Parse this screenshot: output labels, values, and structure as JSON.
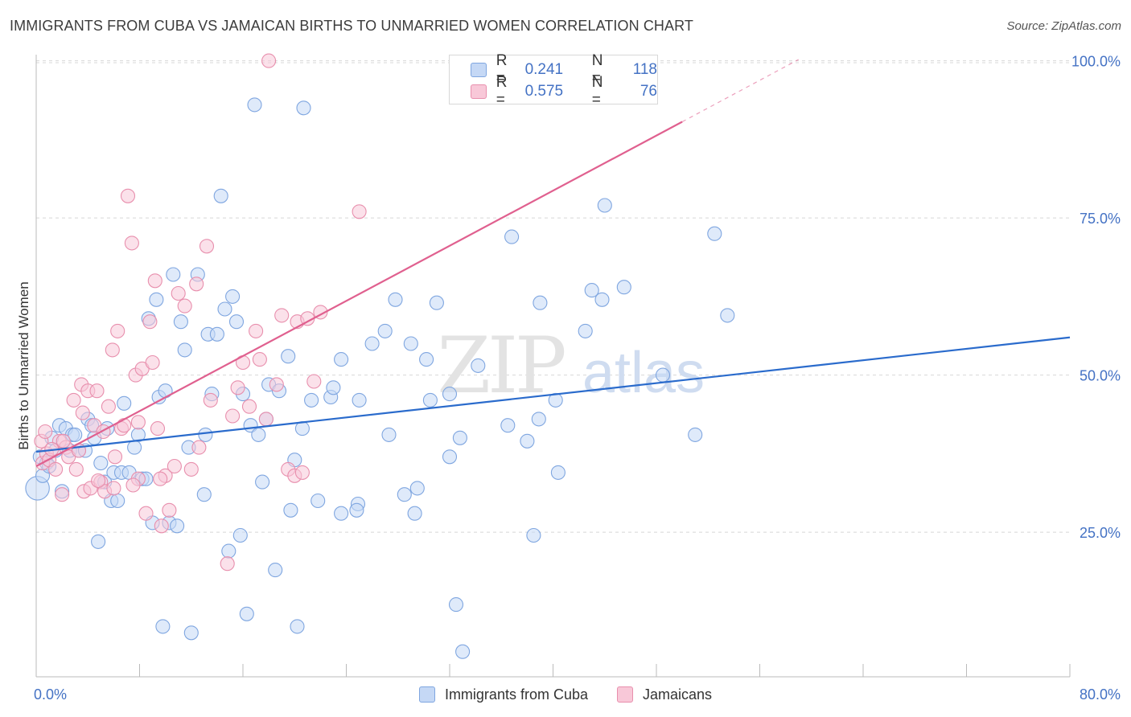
{
  "title": "IMMIGRANTS FROM CUBA VS JAMAICAN BIRTHS TO UNMARRIED WOMEN CORRELATION CHART",
  "source": "Source: ZipAtlas.com",
  "watermark": {
    "zip": "ZIP",
    "atlas": "atlas"
  },
  "legend": {
    "series1": {
      "r_label": "R =",
      "r_value": "0.241",
      "n_label": "N =",
      "n_value": "118"
    },
    "series2": {
      "r_label": "R =",
      "r_value": "0.575",
      "n_label": "N =",
      "n_value": "76"
    }
  },
  "colors": {
    "cuba_fill": "#c5d8f5",
    "cuba_stroke": "#7fa6e0",
    "cuba_line": "#2a6bcc",
    "jam_fill": "#f8c8d8",
    "jam_stroke": "#e88fad",
    "jam_line": "#e0608f",
    "grid": "#d8d8d8",
    "tick_label": "#4472c4"
  },
  "chart_data": {
    "type": "scatter",
    "title": "IMMIGRANTS FROM CUBA VS JAMAICAN BIRTHS TO UNMARRIED WOMEN CORRELATION CHART",
    "xlabel": "",
    "ylabel": "Births to Unmarried Women",
    "xlim": [
      0,
      80
    ],
    "ylim": [
      2,
      102
    ],
    "x_tick_labels": [
      "0.0%",
      "80.0%"
    ],
    "y_ticks": [
      25,
      50,
      75,
      100
    ],
    "y_tick_labels": [
      "25.0%",
      "50.0%",
      "75.0%",
      "100.0%"
    ],
    "grid": true,
    "legend_position": "top-center",
    "series": [
      {
        "name": "Immigrants from Cuba",
        "trend": {
          "x0": 0,
          "y0": 37.8,
          "x1": 80,
          "y1": 56.0
        },
        "points": [
          [
            0.1,
            32,
            3
          ],
          [
            0.3,
            37,
            1
          ],
          [
            0.5,
            34,
            1
          ],
          [
            0.8,
            36,
            1
          ],
          [
            1.0,
            35.5,
            1
          ],
          [
            1.2,
            40,
            1
          ],
          [
            1.5,
            38,
            1
          ],
          [
            1.8,
            42,
            1
          ],
          [
            2.0,
            31.5,
            1
          ],
          [
            2.3,
            41.5,
            1
          ],
          [
            2.6,
            38,
            1
          ],
          [
            2.8,
            40.5,
            1
          ],
          [
            3.0,
            40.5,
            1
          ],
          [
            3.3,
            38,
            1
          ],
          [
            3.8,
            38,
            1
          ],
          [
            4.0,
            43,
            1
          ],
          [
            4.3,
            42,
            1
          ],
          [
            4.5,
            40,
            1
          ],
          [
            4.8,
            23.5,
            1
          ],
          [
            5.0,
            36,
            1
          ],
          [
            5.3,
            33,
            1
          ],
          [
            5.5,
            41.5,
            1
          ],
          [
            5.8,
            30,
            1
          ],
          [
            6.0,
            34.5,
            1
          ],
          [
            6.3,
            30,
            1
          ],
          [
            6.6,
            34.5,
            1
          ],
          [
            6.8,
            45.5,
            1
          ],
          [
            7.2,
            34.5,
            1
          ],
          [
            7.6,
            38.5,
            1
          ],
          [
            7.9,
            40.5,
            1
          ],
          [
            8.2,
            33.5,
            1
          ],
          [
            8.5,
            33.5,
            1
          ],
          [
            8.7,
            59,
            1
          ],
          [
            9.0,
            26.5,
            1
          ],
          [
            9.3,
            62,
            1
          ],
          [
            9.5,
            46.5,
            1
          ],
          [
            9.8,
            10,
            1
          ],
          [
            10.0,
            47.5,
            1
          ],
          [
            10.3,
            26.5,
            1
          ],
          [
            10.6,
            66,
            1
          ],
          [
            10.9,
            26,
            1
          ],
          [
            11.2,
            58.5,
            1
          ],
          [
            11.5,
            54,
            1
          ],
          [
            11.8,
            38.5,
            1
          ],
          [
            12.0,
            9,
            1
          ],
          [
            12.5,
            66,
            1
          ],
          [
            13.0,
            31,
            1
          ],
          [
            13.1,
            40.5,
            1
          ],
          [
            13.3,
            56.5,
            1
          ],
          [
            13.6,
            47,
            1
          ],
          [
            14.0,
            56.5,
            1
          ],
          [
            14.3,
            78.5,
            1
          ],
          [
            14.6,
            60.5,
            1
          ],
          [
            14.9,
            22,
            1
          ],
          [
            15.2,
            62.5,
            1
          ],
          [
            15.5,
            58.5,
            1
          ],
          [
            15.8,
            24.5,
            1
          ],
          [
            16.0,
            47,
            1
          ],
          [
            16.3,
            12,
            1
          ],
          [
            16.6,
            42,
            1
          ],
          [
            16.9,
            93,
            1
          ],
          [
            17.2,
            40.5,
            1
          ],
          [
            17.5,
            33,
            1
          ],
          [
            17.8,
            43,
            1
          ],
          [
            18.0,
            48.5,
            1
          ],
          [
            18.5,
            19,
            1
          ],
          [
            18.8,
            47.5,
            1
          ],
          [
            19.5,
            53,
            1
          ],
          [
            20.0,
            36.5,
            1
          ],
          [
            19.7,
            28.5,
            1
          ],
          [
            20.2,
            10,
            1
          ],
          [
            20.6,
            41.5,
            1
          ],
          [
            20.7,
            92.5,
            1
          ],
          [
            21.3,
            46,
            1
          ],
          [
            21.8,
            30,
            1
          ],
          [
            22.8,
            46.5,
            1
          ],
          [
            23.0,
            48,
            1
          ],
          [
            23.6,
            52.5,
            1
          ],
          [
            23.6,
            28,
            1
          ],
          [
            24.9,
            29.5,
            1
          ],
          [
            24.8,
            28.5,
            1
          ],
          [
            25.0,
            46,
            1
          ],
          [
            26.0,
            55,
            1
          ],
          [
            27.0,
            57,
            1
          ],
          [
            27.3,
            40.5,
            1
          ],
          [
            27.8,
            62,
            1
          ],
          [
            28.5,
            31,
            1
          ],
          [
            29.0,
            55,
            1
          ],
          [
            29.3,
            28,
            1
          ],
          [
            29.5,
            32,
            1
          ],
          [
            30.2,
            52.5,
            1
          ],
          [
            30.5,
            46,
            1
          ],
          [
            31.0,
            61.5,
            1
          ],
          [
            32.0,
            37,
            1
          ],
          [
            32.0,
            47,
            1
          ],
          [
            32.5,
            13.5,
            1
          ],
          [
            32.8,
            40,
            1
          ],
          [
            33.0,
            6,
            1
          ],
          [
            34.2,
            51.5,
            1
          ],
          [
            36.5,
            42,
            1
          ],
          [
            36.8,
            72,
            1
          ],
          [
            38.0,
            39.5,
            1
          ],
          [
            38.5,
            24.5,
            1
          ],
          [
            38.9,
            43,
            1
          ],
          [
            39.0,
            61.5,
            1
          ],
          [
            40.2,
            46,
            1
          ],
          [
            40.4,
            34.5,
            1
          ],
          [
            42.5,
            57,
            1
          ],
          [
            43.0,
            63.5,
            1
          ],
          [
            43.8,
            62,
            1
          ],
          [
            44.0,
            77,
            1
          ],
          [
            45.5,
            64,
            1
          ],
          [
            48.5,
            50,
            1
          ],
          [
            51.0,
            40.5,
            1
          ],
          [
            52.5,
            72.5,
            1
          ],
          [
            53.5,
            59.5,
            1
          ]
        ]
      },
      {
        "name": "Jamaicans",
        "trend": {
          "x0": 0,
          "y0": 35.5,
          "x1": 50,
          "y1": 90.3,
          "x_dash_end": 59,
          "y_dash_end": 100.2
        },
        "points": [
          [
            0.4,
            39.5,
            1
          ],
          [
            0.5,
            36,
            1
          ],
          [
            0.8,
            37.5,
            1
          ],
          [
            1.0,
            36.5,
            1
          ],
          [
            1.5,
            35,
            1
          ],
          [
            1.8,
            39.5,
            1
          ],
          [
            2.0,
            31,
            1
          ],
          [
            2.3,
            38.5,
            1
          ],
          [
            2.5,
            37,
            1
          ],
          [
            2.9,
            46,
            1
          ],
          [
            3.1,
            35,
            1
          ],
          [
            3.5,
            48.5,
            1
          ],
          [
            3.7,
            31.5,
            1
          ],
          [
            4.0,
            47.5,
            1
          ],
          [
            4.2,
            32,
            1
          ],
          [
            4.5,
            42,
            1
          ],
          [
            4.7,
            47.5,
            1
          ],
          [
            5.0,
            33,
            1
          ],
          [
            5.3,
            31.5,
            1
          ],
          [
            5.6,
            45,
            1
          ],
          [
            5.9,
            54,
            1
          ],
          [
            6.1,
            37,
            1
          ],
          [
            6.3,
            57,
            1
          ],
          [
            6.6,
            41.5,
            1
          ],
          [
            6.8,
            42,
            1
          ],
          [
            7.1,
            78.5,
            1
          ],
          [
            7.4,
            71,
            1
          ],
          [
            7.7,
            50,
            1
          ],
          [
            7.9,
            33.5,
            1
          ],
          [
            8.2,
            51,
            1
          ],
          [
            8.5,
            28,
            1
          ],
          [
            8.8,
            58.5,
            1
          ],
          [
            9.0,
            52,
            1
          ],
          [
            9.2,
            65,
            1
          ],
          [
            9.4,
            41.5,
            1
          ],
          [
            9.7,
            26,
            1
          ],
          [
            10.0,
            34,
            1
          ],
          [
            10.3,
            28.5,
            1
          ],
          [
            10.7,
            35.5,
            1
          ],
          [
            11.0,
            63,
            1
          ],
          [
            11.5,
            61,
            1
          ],
          [
            12.0,
            35,
            1
          ],
          [
            12.4,
            64.5,
            1
          ],
          [
            12.6,
            38.5,
            1
          ],
          [
            13.2,
            70.5,
            1
          ],
          [
            13.5,
            46,
            1
          ],
          [
            14.8,
            20,
            1
          ],
          [
            15.2,
            43.5,
            1
          ],
          [
            15.6,
            48,
            1
          ],
          [
            16.0,
            52,
            1
          ],
          [
            16.5,
            45,
            1
          ],
          [
            17.0,
            57,
            1
          ],
          [
            17.3,
            52.5,
            1
          ],
          [
            17.8,
            43,
            1
          ],
          [
            18.0,
            100,
            1
          ],
          [
            18.6,
            48.5,
            1
          ],
          [
            19.0,
            59.5,
            1
          ],
          [
            19.5,
            35,
            1
          ],
          [
            20.0,
            34,
            1
          ],
          [
            20.2,
            58.5,
            1
          ],
          [
            20.6,
            34.5,
            1
          ],
          [
            21.0,
            59,
            1
          ],
          [
            21.5,
            49,
            1
          ],
          [
            22.0,
            60,
            1
          ],
          [
            25.0,
            76,
            1
          ],
          [
            3.3,
            38,
            1
          ],
          [
            2.1,
            39.5,
            1
          ],
          [
            6.0,
            32,
            1
          ],
          [
            7.5,
            32.5,
            1
          ],
          [
            1.2,
            38.2,
            1
          ],
          [
            4.8,
            33.2,
            1
          ],
          [
            5.2,
            41,
            1
          ],
          [
            7.9,
            42.5,
            1
          ],
          [
            3.6,
            44,
            1
          ],
          [
            9.6,
            33.5,
            1
          ],
          [
            0.7,
            41,
            1
          ]
        ]
      }
    ]
  }
}
